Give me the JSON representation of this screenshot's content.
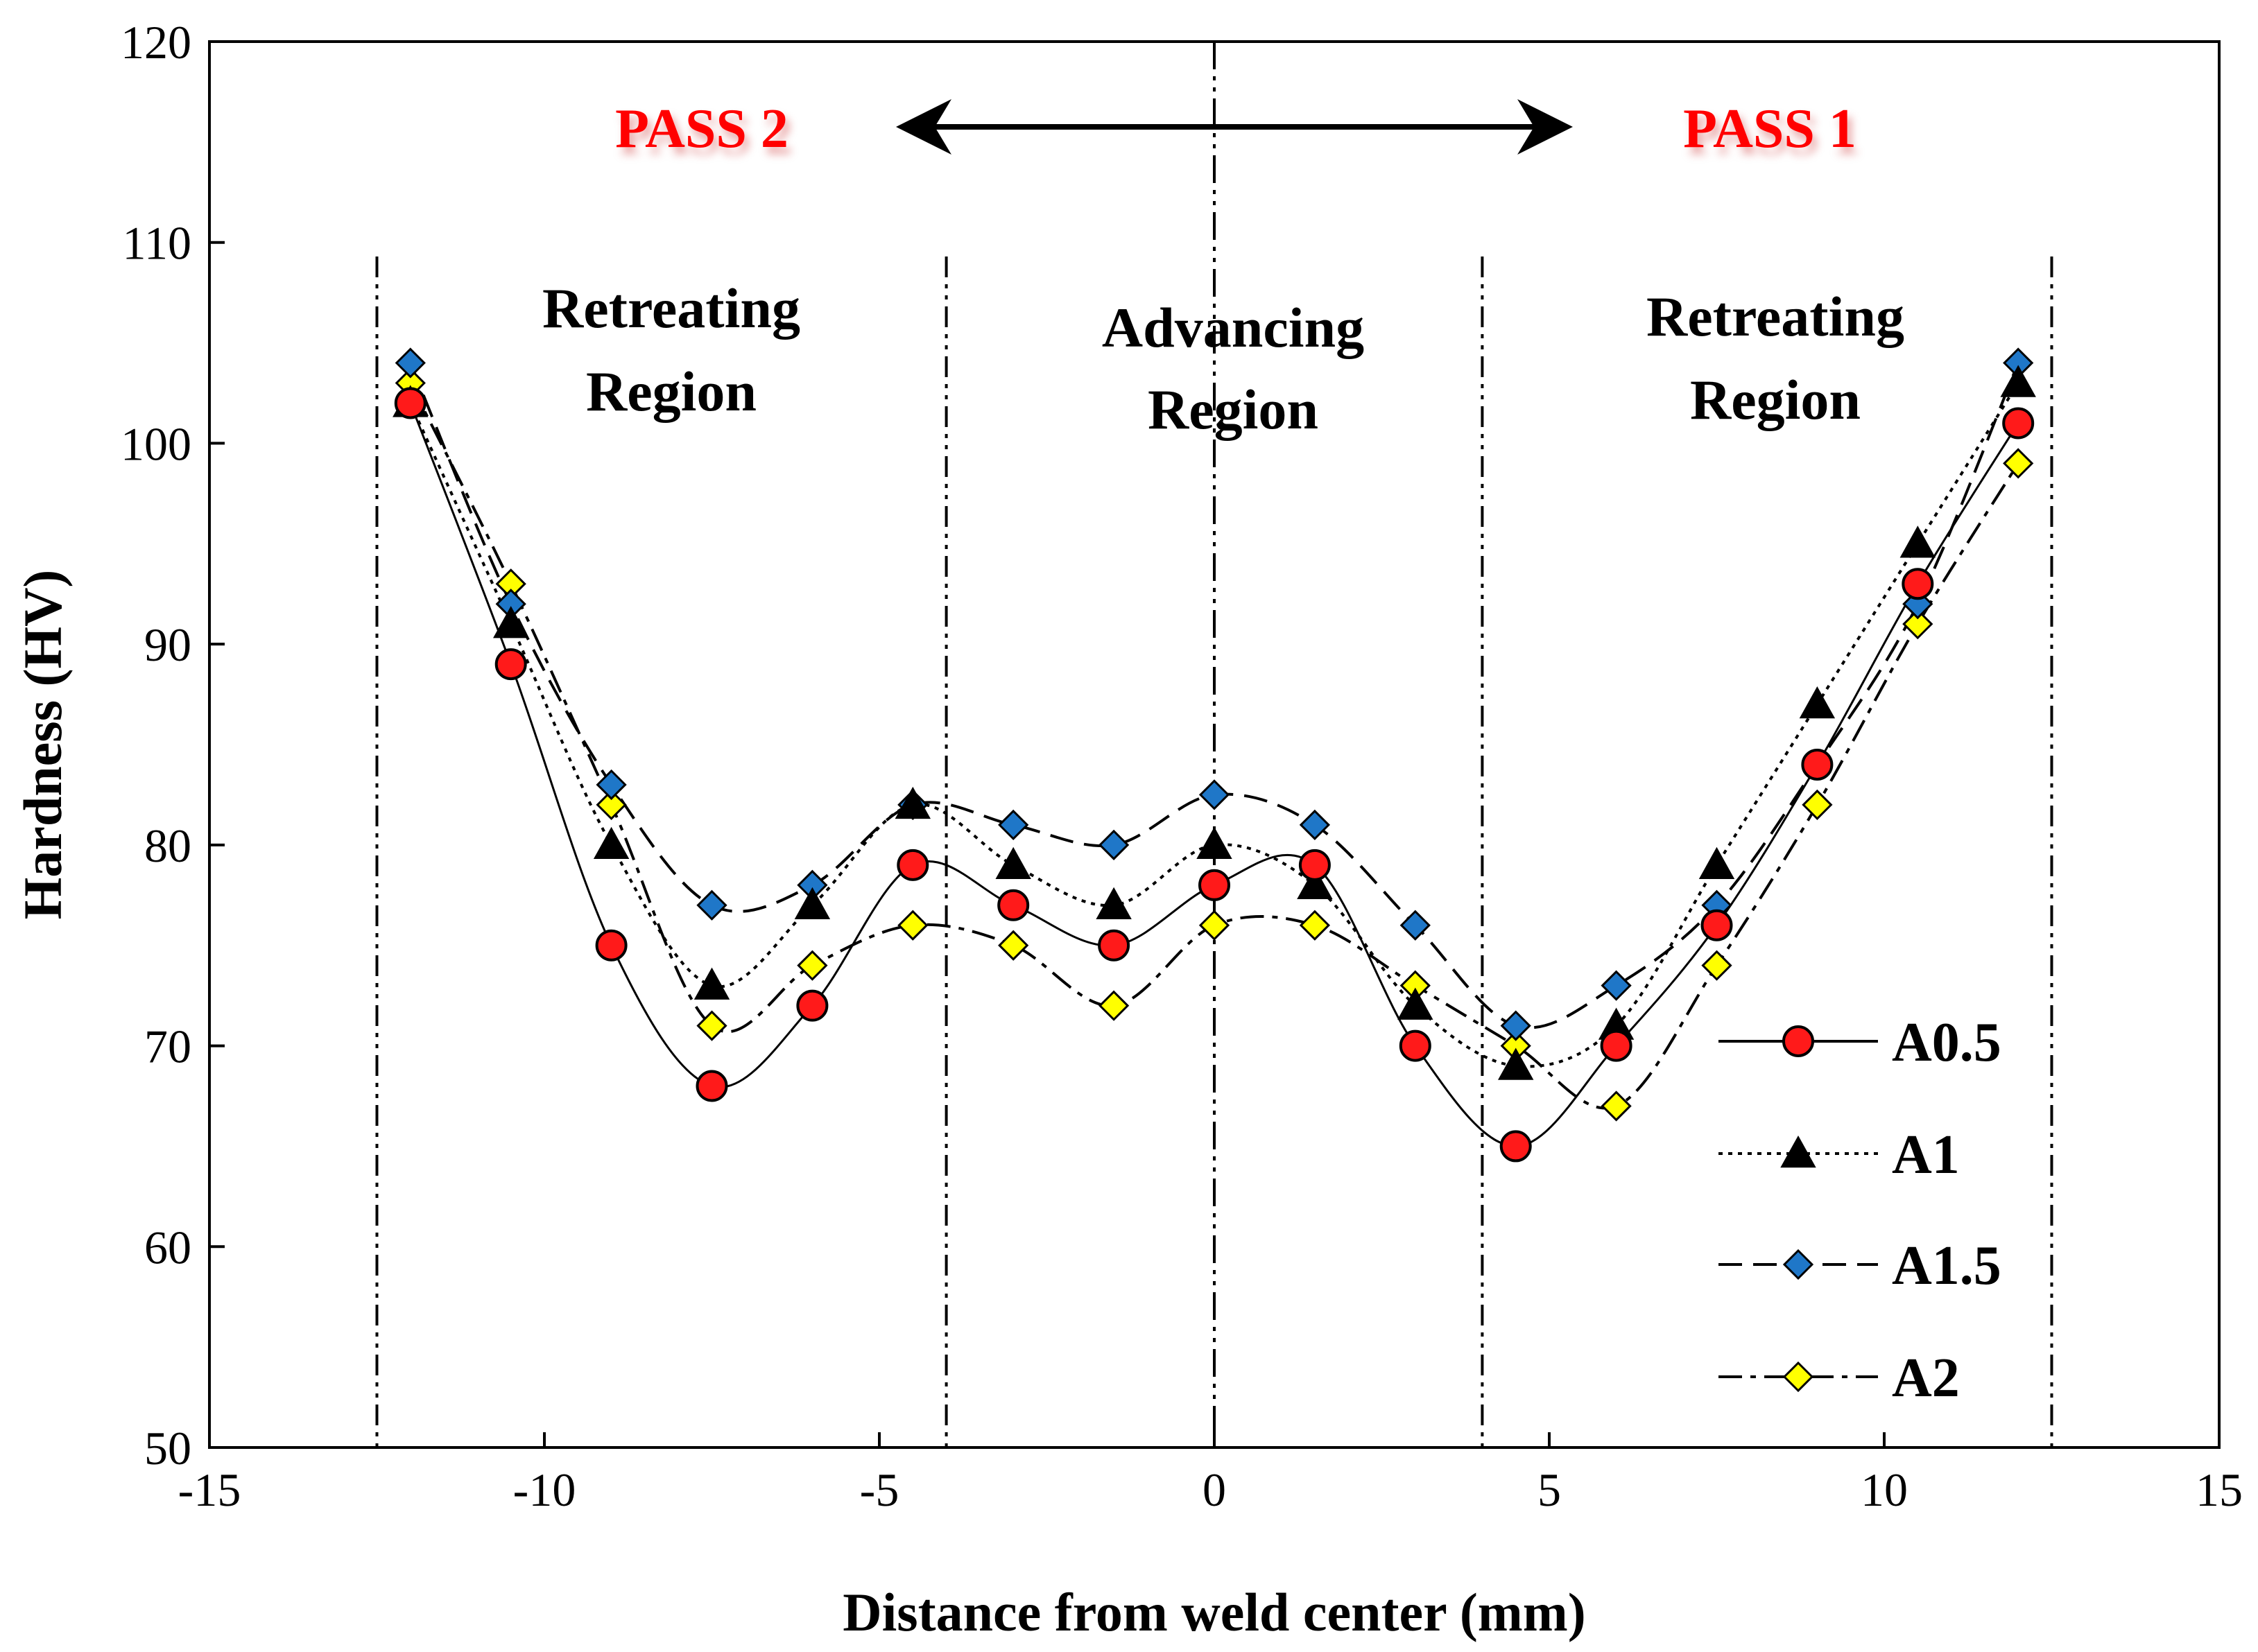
{
  "chart_data": {
    "type": "line",
    "title": "",
    "xlabel": "Distance from weld center (mm)",
    "ylabel": "Hardness (HV)",
    "xlim": [
      -15,
      15
    ],
    "ylim": [
      50,
      120
    ],
    "xticks": [
      -15,
      -10,
      -5,
      0,
      5,
      10,
      15
    ],
    "yticks": [
      50,
      60,
      70,
      80,
      90,
      100,
      110,
      120
    ],
    "xtick_labels": [
      "-15",
      "-10",
      "-5",
      "0",
      "5",
      "10",
      "15"
    ],
    "ytick_labels": [
      "50",
      "60",
      "70",
      "80",
      "90",
      "100",
      "110",
      "120"
    ],
    "legend_position": "right",
    "x": [
      -12,
      -10.5,
      -9,
      -7.5,
      -6,
      -4.5,
      -3,
      -1.5,
      0,
      1.5,
      3,
      4.5,
      6,
      7.5,
      9,
      10.5,
      12
    ],
    "series": [
      {
        "name": "A0.5",
        "line_style": "solid",
        "marker": "circle",
        "color": "#ff1a1a",
        "values": [
          102,
          89,
          75,
          68,
          72,
          79,
          77,
          75,
          78,
          79,
          70,
          65,
          70,
          76,
          84,
          93,
          101
        ]
      },
      {
        "name": "A1",
        "line_style": "dotted",
        "marker": "triangle",
        "color": "#000000",
        "values": [
          102,
          91,
          80,
          73,
          77,
          82,
          79,
          77,
          80,
          78,
          72,
          69,
          71,
          79,
          87,
          95,
          103
        ]
      },
      {
        "name": "A1.5",
        "line_style": "dashed",
        "marker": "diamond",
        "color": "#1f77c8",
        "values": [
          104,
          92,
          83,
          77,
          78,
          82,
          81,
          80,
          82.5,
          81,
          76,
          71,
          73,
          77,
          84,
          92,
          104
        ]
      },
      {
        "name": "A2",
        "line_style": "dashdot",
        "marker": "diamond",
        "color": "#ffff00",
        "values": [
          103,
          93,
          82,
          71,
          74,
          76,
          75,
          72,
          76,
          76,
          73,
          70,
          67,
          74,
          82,
          91,
          99
        ]
      }
    ],
    "boundary_lines_x": [
      -12.5,
      -4,
      0,
      4,
      12.5
    ],
    "annotations": {
      "pass_left": "PASS 2",
      "pass_right": "PASS 1",
      "regions": [
        {
          "line1": "Retreating",
          "line2": "Region"
        },
        {
          "line1": "Advancing",
          "line2": "Region"
        },
        {
          "line1": "Retreating",
          "line2": "Region"
        }
      ]
    }
  }
}
